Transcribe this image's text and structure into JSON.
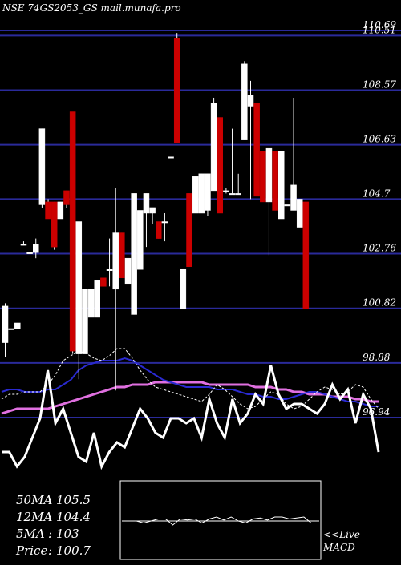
{
  "chart_data": {
    "type": "candlestick",
    "title": "NSE 74GS2053_GS mail.munafa.pro",
    "ylim": [
      96.94,
      110.69
    ],
    "y_ticks": [
      "110.69",
      "110.51",
      "108.57",
      "106.63",
      "104.7",
      "102.76",
      "100.82",
      "98.88",
      "96.94"
    ],
    "candles": [
      {
        "o": 100.9,
        "h": 101.0,
        "l": 99.1,
        "c": 99.6,
        "color": "white"
      },
      {
        "o": 100.1,
        "h": 100.1,
        "l": 100.1,
        "c": 100.1,
        "color": "white"
      },
      {
        "o": 100.3,
        "h": 100.3,
        "l": 100.1,
        "c": 100.1,
        "color": "white"
      },
      {
        "o": 103.1,
        "h": 103.2,
        "l": 103.1,
        "c": 103.1,
        "color": "white"
      },
      {
        "o": 102.8,
        "h": 102.8,
        "l": 102.8,
        "c": 102.8,
        "color": "white"
      },
      {
        "o": 103.1,
        "h": 103.3,
        "l": 102.6,
        "c": 102.8,
        "color": "white"
      },
      {
        "o": 104.5,
        "h": 107.2,
        "l": 104.4,
        "c": 107.2,
        "color": "white"
      },
      {
        "o": 104.6,
        "h": 104.7,
        "l": 104.0,
        "c": 104.0,
        "color": "red"
      },
      {
        "o": 104.6,
        "h": 104.6,
        "l": 102.9,
        "c": 103.0,
        "color": "red"
      },
      {
        "o": 104.6,
        "h": 104.6,
        "l": 104.0,
        "c": 104.0,
        "color": "white"
      },
      {
        "o": 105.0,
        "h": 105.0,
        "l": 104.4,
        "c": 104.5,
        "color": "red"
      },
      {
        "o": 107.8,
        "h": 107.8,
        "l": 99.2,
        "c": 99.3,
        "color": "red"
      },
      {
        "o": 99.2,
        "h": 103.9,
        "l": 98.3,
        "c": 103.9,
        "color": "white"
      },
      {
        "o": 101.5,
        "h": 101.5,
        "l": 99.2,
        "c": 99.2,
        "color": "white"
      },
      {
        "o": 101.5,
        "h": 101.5,
        "l": 100.5,
        "c": 100.5,
        "color": "white"
      },
      {
        "o": 101.8,
        "h": 101.8,
        "l": 100.5,
        "c": 100.5,
        "color": "white"
      },
      {
        "o": 101.9,
        "h": 101.9,
        "l": 101.6,
        "c": 101.6,
        "color": "red"
      },
      {
        "o": 102.2,
        "h": 103.3,
        "l": 101.6,
        "c": 102.2,
        "color": "white"
      },
      {
        "o": 103.5,
        "h": 105.1,
        "l": 97.9,
        "c": 101.5,
        "color": "white"
      },
      {
        "o": 103.5,
        "h": 103.5,
        "l": 101.9,
        "c": 101.9,
        "color": "red"
      },
      {
        "o": 101.7,
        "h": 107.7,
        "l": 101.5,
        "c": 102.6,
        "color": "white"
      },
      {
        "o": 104.9,
        "h": 104.9,
        "l": 100.6,
        "c": 100.6,
        "color": "white"
      },
      {
        "o": 104.3,
        "h": 104.3,
        "l": 102.2,
        "c": 102.2,
        "color": "white"
      },
      {
        "o": 104.9,
        "h": 104.9,
        "l": 103.0,
        "c": 104.2,
        "color": "white"
      },
      {
        "o": 104.4,
        "h": 104.4,
        "l": 103.8,
        "c": 104.2,
        "color": "white"
      },
      {
        "o": 103.9,
        "h": 103.9,
        "l": 103.3,
        "c": 103.3,
        "color": "red"
      },
      {
        "o": 103.9,
        "h": 104.2,
        "l": 103.2,
        "c": 103.9,
        "color": "white"
      },
      {
        "o": 106.2,
        "h": 106.2,
        "l": 106.2,
        "c": 106.2,
        "color": "white"
      },
      {
        "o": 110.4,
        "h": 110.6,
        "l": 106.7,
        "c": 106.7,
        "color": "red"
      },
      {
        "o": 102.2,
        "h": 102.2,
        "l": 100.8,
        "c": 100.8,
        "color": "white"
      },
      {
        "o": 104.9,
        "h": 104.9,
        "l": 102.3,
        "c": 102.3,
        "color": "red"
      },
      {
        "o": 105.5,
        "h": 105.5,
        "l": 104.2,
        "c": 104.2,
        "color": "white"
      },
      {
        "o": 105.6,
        "h": 105.6,
        "l": 104.2,
        "c": 104.2,
        "color": "white"
      },
      {
        "o": 105.6,
        "h": 105.6,
        "l": 104.1,
        "c": 104.3,
        "color": "white"
      },
      {
        "o": 108.1,
        "h": 108.3,
        "l": 105.0,
        "c": 105.0,
        "color": "white"
      },
      {
        "o": 107.6,
        "h": 107.6,
        "l": 104.2,
        "c": 104.2,
        "color": "red"
      },
      {
        "o": 105.0,
        "h": 105.1,
        "l": 104.9,
        "c": 105.0,
        "color": "white"
      },
      {
        "o": 104.9,
        "h": 107.2,
        "l": 104.9,
        "c": 104.9,
        "color": "white"
      },
      {
        "o": 104.9,
        "h": 105.6,
        "l": 104.9,
        "c": 104.9,
        "color": "white"
      },
      {
        "o": 109.5,
        "h": 109.6,
        "l": 106.8,
        "c": 106.8,
        "color": "white"
      },
      {
        "o": 108.4,
        "h": 108.9,
        "l": 104.7,
        "c": 108.0,
        "color": "white"
      },
      {
        "o": 108.1,
        "h": 108.1,
        "l": 104.8,
        "c": 104.8,
        "color": "red"
      },
      {
        "o": 106.4,
        "h": 106.4,
        "l": 104.6,
        "c": 104.6,
        "color": "red"
      },
      {
        "o": 106.5,
        "h": 106.5,
        "l": 102.7,
        "c": 104.6,
        "color": "white"
      },
      {
        "o": 106.4,
        "h": 106.4,
        "l": 104.3,
        "c": 104.3,
        "color": "red"
      },
      {
        "o": 106.4,
        "h": 106.4,
        "l": 104.0,
        "c": 104.0,
        "color": "white"
      },
      {
        "o": 104.5,
        "h": 104.5,
        "l": 104.5,
        "c": 104.5,
        "color": "white"
      },
      {
        "o": 105.2,
        "h": 108.3,
        "l": 104.3,
        "c": 104.3,
        "color": "white"
      },
      {
        "o": 104.7,
        "h": 104.7,
        "l": 103.7,
        "c": 103.7,
        "color": "white"
      },
      {
        "o": 104.6,
        "h": 104.6,
        "l": 100.8,
        "c": 100.8,
        "color": "red"
      }
    ],
    "moving_averages": [
      {
        "name": "50MA",
        "color": "#e070e0",
        "values": [
          96.4,
          96.45,
          96.5,
          96.5,
          96.5,
          96.5,
          96.5,
          96.55,
          96.6,
          96.65,
          96.7,
          96.75,
          96.8,
          96.85,
          96.9,
          96.95,
          96.95,
          97.0,
          97.0,
          97.0,
          97.05,
          97.05,
          97.05,
          97.05,
          97.05,
          97.05,
          97.05,
          97.0,
          97.0,
          97.0,
          97.0,
          97.0,
          97.0,
          96.95,
          96.95,
          96.95,
          96.9,
          96.9,
          96.85,
          96.85,
          96.8,
          96.8,
          96.8,
          96.75,
          96.75,
          96.75,
          96.7,
          96.7,
          96.65,
          96.65
        ]
      },
      {
        "name": "12MA",
        "color": "#2a2ad0",
        "values": [
          96.85,
          96.9,
          96.9,
          96.85,
          96.85,
          96.85,
          96.9,
          96.9,
          97.0,
          97.1,
          97.3,
          97.4,
          97.45,
          97.5,
          97.5,
          97.5,
          97.55,
          97.5,
          97.4,
          97.3,
          97.2,
          97.1,
          97.05,
          97.0,
          96.95,
          96.95,
          96.95,
          96.95,
          96.9,
          96.9,
          96.9,
          96.85,
          96.8,
          96.8,
          96.75,
          96.75,
          96.7,
          96.7,
          96.75,
          96.8,
          96.85,
          96.85,
          96.8,
          96.75,
          96.7,
          96.65,
          96.65,
          96.6,
          96.55,
          96.55
        ]
      },
      {
        "name": "5MA",
        "color": "#ffffff",
        "values": [
          96.7,
          96.8,
          96.8,
          96.85,
          96.85,
          96.85,
          97.0,
          97.2,
          97.5,
          97.6,
          97.7,
          97.65,
          97.55,
          97.5,
          97.6,
          97.75,
          97.75,
          97.55,
          97.3,
          97.1,
          96.95,
          96.9,
          96.85,
          96.8,
          96.75,
          96.7,
          96.65,
          96.8,
          97.0,
          96.9,
          96.75,
          96.6,
          96.5,
          96.55,
          96.7,
          96.85,
          96.8,
          96.6,
          96.5,
          96.55,
          96.7,
          96.85,
          96.95,
          96.9,
          96.8,
          96.85,
          97.0,
          96.95,
          96.7,
          96.5
        ]
      },
      {
        "name": "Price",
        "color": "#ffffff",
        "values": [
          95.6,
          95.6,
          95.3,
          95.5,
          95.9,
          96.3,
          97.3,
          96.2,
          96.5,
          96.0,
          95.5,
          95.4,
          96.0,
          95.3,
          95.6,
          95.8,
          95.7,
          96.1,
          96.5,
          96.3,
          96.0,
          95.9,
          96.3,
          96.3,
          96.2,
          96.3,
          95.9,
          96.7,
          96.2,
          95.9,
          96.7,
          96.2,
          96.4,
          96.8,
          96.6,
          97.4,
          96.8,
          96.5,
          96.6,
          96.6,
          96.5,
          96.4,
          96.6,
          97.0,
          96.7,
          96.9,
          96.2,
          96.8,
          96.5,
          95.6
        ]
      }
    ],
    "legend": [
      {
        "label": "50MA",
        "value": "105.5"
      },
      {
        "label": "12MA",
        "value": "104.4"
      },
      {
        "label": "5MA",
        "value": "103"
      },
      {
        "label": "Price",
        "value": "100.7"
      }
    ],
    "macd": {
      "label": "<<Live",
      "label2": "MACD",
      "values": [
        0,
        0,
        0,
        -0.1,
        0,
        0.1,
        0.1,
        -0.2,
        0.1,
        0.05,
        0.1,
        -0.1,
        0.1,
        0.2,
        0.05,
        0.2,
        0,
        -0.1,
        0.1,
        0.15,
        0.05,
        0.2,
        0.2,
        0.1,
        0.15,
        0.2,
        -0.1
      ]
    }
  }
}
